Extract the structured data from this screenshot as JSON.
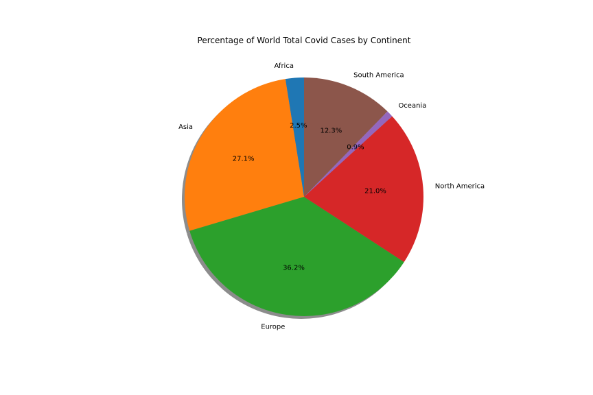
{
  "chart_data": {
    "type": "pie",
    "title": "Percentage of World Total Covid Cases by Continent",
    "shadow": true,
    "start_angle_deg": 90,
    "direction": "counterclockwise",
    "slices": [
      {
        "label": "Africa",
        "value": 2.5,
        "pct_label": "2.5%",
        "color": "#1f77b4"
      },
      {
        "label": "Asia",
        "value": 27.1,
        "pct_label": "27.1%",
        "color": "#ff7f0e"
      },
      {
        "label": "Europe",
        "value": 36.2,
        "pct_label": "36.2%",
        "color": "#2ca02c"
      },
      {
        "label": "North America",
        "value": 21.0,
        "pct_label": "21.0%",
        "color": "#d62728"
      },
      {
        "label": "Oceania",
        "value": 0.9,
        "pct_label": "0.9%",
        "color": "#9467bd"
      },
      {
        "label": "South America",
        "value": 12.3,
        "pct_label": "12.3%",
        "color": "#8c564b"
      }
    ]
  }
}
